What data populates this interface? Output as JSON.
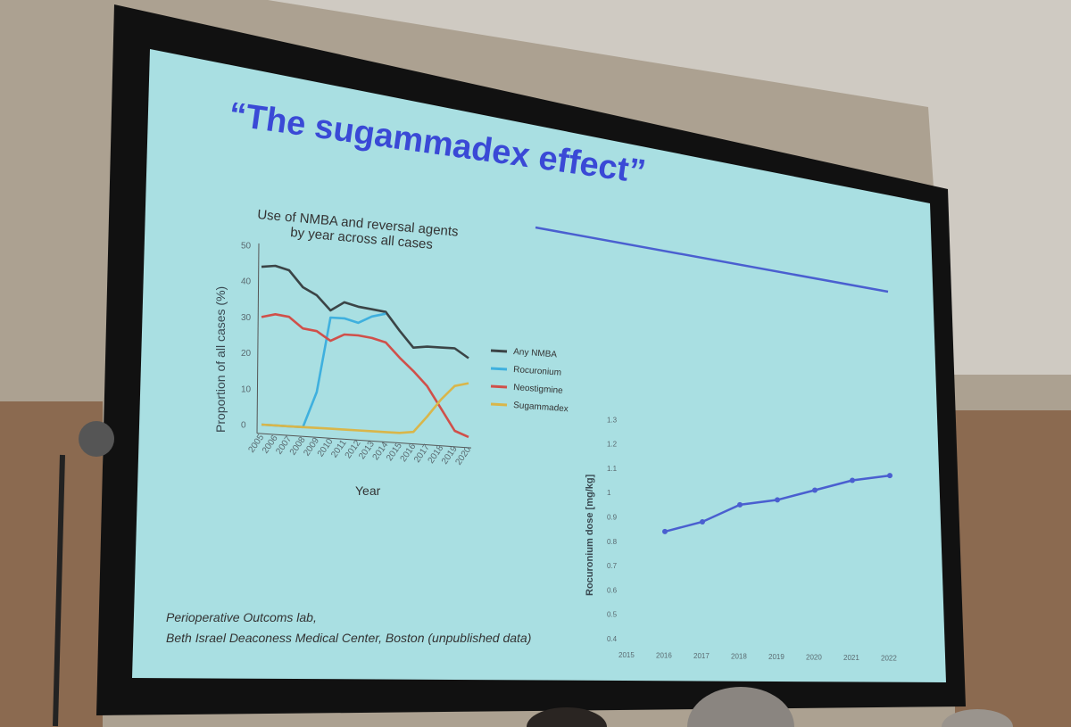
{
  "slide": {
    "title": "“The sugammadex effect”",
    "credit_line1": "Perioperative Outcoms lab,",
    "credit_line2": "Beth Israel Deaconess Medical Center, Boston (unpublished data)"
  },
  "colors": {
    "slide_bg": "#a9dfe2",
    "title": "#3a49d6",
    "dose_line": "#4a5fd0"
  },
  "chart_data": [
    {
      "type": "line",
      "title": "Use of NMBA and reversal agents by year across all cases",
      "title_line1": "Use of NMBA and reversal agents",
      "title_line2": "by year across all cases",
      "xlabel": "Year",
      "ylabel": "Proportion of all cases (%)",
      "ylim": [
        0,
        50
      ],
      "yticks": [
        "0",
        "10",
        "20",
        "30",
        "40",
        "50"
      ],
      "x": [
        "2005",
        "2006",
        "2007",
        "2008",
        "2009",
        "2010",
        "2011",
        "2012",
        "2013",
        "2014",
        "2015",
        "2016",
        "2017",
        "2018",
        "2019",
        "2020"
      ],
      "legend_position": "right",
      "series": [
        {
          "name": "Any NMBA",
          "color": "#3b4446",
          "values": [
            44,
            44.5,
            43.5,
            39,
            37,
            33,
            35.5,
            34.5,
            34,
            33.5,
            28.5,
            24,
            24.5,
            24.5,
            24.5,
            22
          ]
        },
        {
          "name": "Rocuronium",
          "color": "#3fb0de",
          "values": [
            0,
            0,
            0,
            0,
            10,
            31,
            31,
            30,
            32,
            33,
            null,
            null,
            null,
            null,
            null,
            null
          ]
        },
        {
          "name": "Neostigmine",
          "color": "#d0504a",
          "values": [
            30,
            31,
            30.5,
            27.5,
            27,
            24.5,
            26.5,
            26.5,
            26,
            25,
            21,
            17.5,
            13.5,
            7.5,
            1.5,
            0
          ]
        },
        {
          "name": "Sugammadex",
          "color": "#d9b64a",
          "values": [
            0,
            0,
            0,
            0,
            0,
            0,
            0,
            0,
            0,
            0,
            0,
            0.5,
            5,
            10,
            14,
            15
          ]
        }
      ]
    },
    {
      "type": "line",
      "ylabel": "Rocuronium dose [mg/kg]",
      "ylim": [
        0.4,
        1.3
      ],
      "yticks": [
        "0.4",
        "0.5",
        "0.6",
        "0.7",
        "0.8",
        "0.9",
        "1",
        "1.1",
        "1.2",
        "1.3"
      ],
      "xticks": [
        "2015",
        "2016",
        "2017",
        "2018",
        "2019",
        "2020",
        "2021",
        "2022"
      ],
      "x": [
        2016,
        2017,
        2018,
        2019,
        2020,
        2021,
        2022
      ],
      "values": [
        0.84,
        0.88,
        0.95,
        0.97,
        1.01,
        1.05,
        1.07
      ],
      "grid": false
    }
  ]
}
